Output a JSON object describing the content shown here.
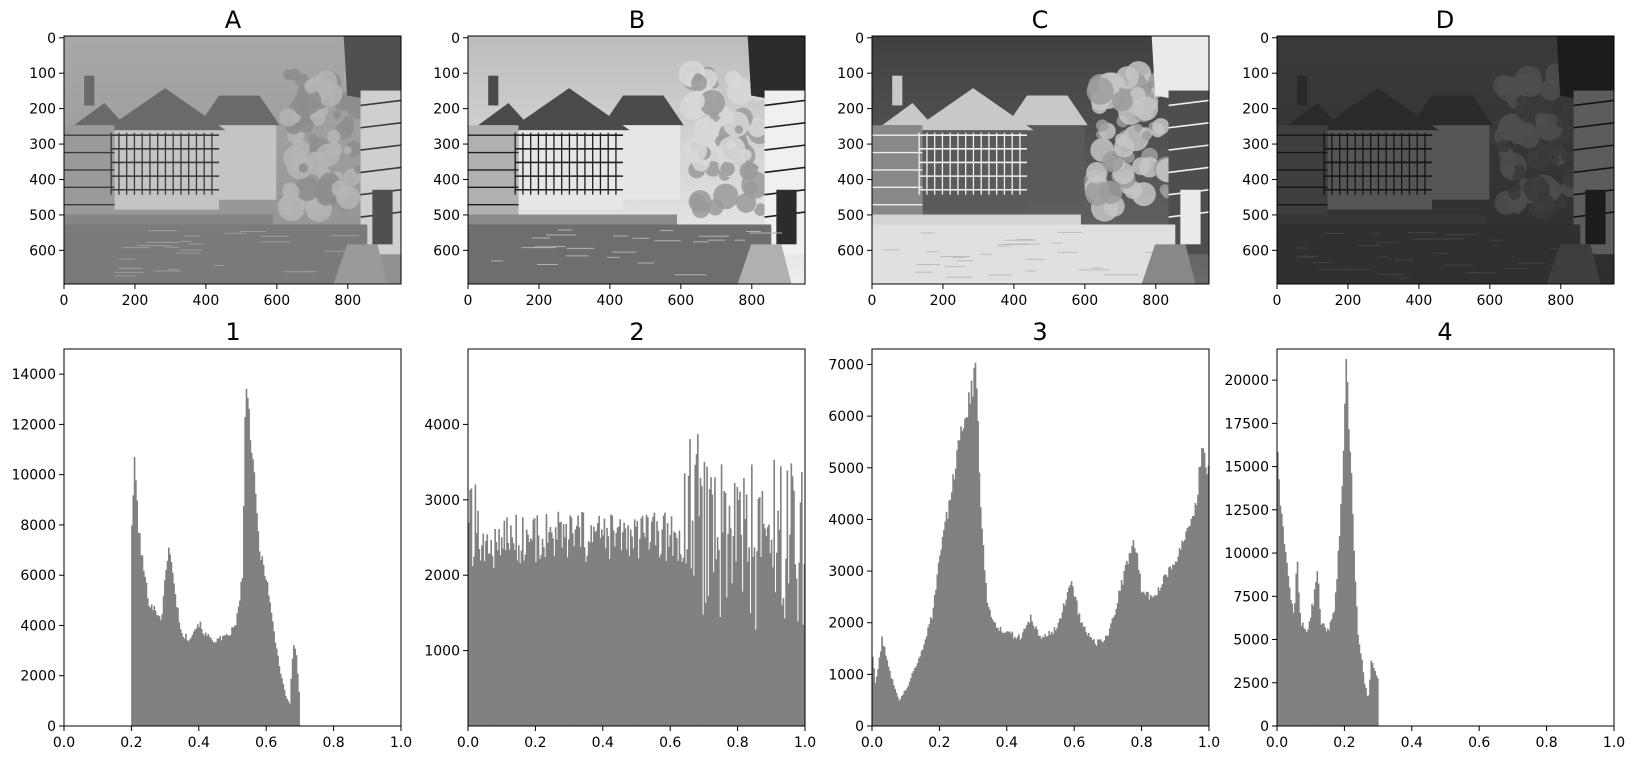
{
  "colors": {
    "bar": "#808080",
    "axis": "#000000",
    "background": "#ffffff"
  },
  "images": [
    {
      "title": "A",
      "variant": "original",
      "x_ticks": [
        "0",
        "200",
        "400",
        "600",
        "800"
      ],
      "y_ticks": [
        "0",
        "100",
        "200",
        "300",
        "400",
        "500",
        "600"
      ]
    },
    {
      "title": "B",
      "variant": "equalized",
      "x_ticks": [
        "0",
        "200",
        "400",
        "600",
        "800"
      ],
      "y_ticks": [
        "0",
        "100",
        "200",
        "300",
        "400",
        "500",
        "600"
      ]
    },
    {
      "title": "C",
      "variant": "inverted",
      "x_ticks": [
        "0",
        "200",
        "400",
        "600",
        "800"
      ],
      "y_ticks": [
        "0",
        "100",
        "200",
        "300",
        "400",
        "500",
        "600"
      ]
    },
    {
      "title": "D",
      "variant": "darkened",
      "x_ticks": [
        "0",
        "200",
        "400",
        "600",
        "800"
      ],
      "y_ticks": [
        "0",
        "100",
        "200",
        "300",
        "400",
        "500",
        "600"
      ]
    }
  ],
  "chart_data": [
    {
      "type": "bar",
      "title": "1",
      "xlim": [
        0,
        1
      ],
      "ylim": [
        0,
        15000
      ],
      "x_ticks": [
        "0.0",
        "0.2",
        "0.4",
        "0.6",
        "0.8",
        "1.0"
      ],
      "y_ticks": [
        "0",
        "2000",
        "4000",
        "6000",
        "8000",
        "10000",
        "12000",
        "14000"
      ],
      "profile": [
        [
          0.0,
          0
        ],
        [
          0.199,
          0
        ],
        [
          0.2,
          7800
        ],
        [
          0.21,
          10600
        ],
        [
          0.22,
          8000
        ],
        [
          0.23,
          6800
        ],
        [
          0.25,
          5000
        ],
        [
          0.27,
          4600
        ],
        [
          0.29,
          4300
        ],
        [
          0.31,
          7300
        ],
        [
          0.33,
          5200
        ],
        [
          0.35,
          3600
        ],
        [
          0.37,
          3500
        ],
        [
          0.4,
          4100
        ],
        [
          0.42,
          3600
        ],
        [
          0.45,
          3400
        ],
        [
          0.48,
          3500
        ],
        [
          0.51,
          4000
        ],
        [
          0.53,
          6000
        ],
        [
          0.54,
          14200
        ],
        [
          0.55,
          12000
        ],
        [
          0.56,
          10500
        ],
        [
          0.58,
          7000
        ],
        [
          0.6,
          6000
        ],
        [
          0.62,
          4000
        ],
        [
          0.64,
          2300
        ],
        [
          0.66,
          1100
        ],
        [
          0.67,
          900
        ],
        [
          0.68,
          3300
        ],
        [
          0.69,
          2800
        ],
        [
          0.7,
          800
        ],
        [
          0.701,
          0
        ],
        [
          1.0,
          0
        ]
      ]
    },
    {
      "type": "bar",
      "title": "2",
      "xlim": [
        0,
        1
      ],
      "ylim": [
        0,
        5000
      ],
      "x_ticks": [
        "0.0",
        "0.2",
        "0.4",
        "0.6",
        "0.8",
        "1.0"
      ],
      "y_ticks": [
        "1000",
        "2000",
        "3000",
        "4000"
      ],
      "profile": [
        [
          0.0,
          2500
        ],
        [
          0.02,
          2800
        ],
        [
          0.05,
          2300
        ],
        [
          0.1,
          2500
        ],
        [
          0.2,
          2500
        ],
        [
          0.3,
          2500
        ],
        [
          0.4,
          2500
        ],
        [
          0.5,
          2500
        ],
        [
          0.6,
          2500
        ],
        [
          0.64,
          2400
        ],
        [
          0.66,
          2800
        ],
        [
          0.7,
          2600
        ],
        [
          0.75,
          2600
        ],
        [
          0.8,
          2500
        ],
        [
          0.85,
          2400
        ],
        [
          0.9,
          2400
        ],
        [
          0.95,
          2500
        ],
        [
          1.0,
          2400
        ]
      ]
    },
    {
      "type": "bar",
      "title": "3",
      "xlim": [
        0,
        1
      ],
      "ylim": [
        0,
        7300
      ],
      "x_ticks": [
        "0.0",
        "0.2",
        "0.4",
        "0.6",
        "0.8",
        "1.0"
      ],
      "y_ticks": [
        "0",
        "1000",
        "2000",
        "3000",
        "4000",
        "5000",
        "6000",
        "7000"
      ],
      "profile": [
        [
          0.0,
          1500
        ],
        [
          0.01,
          800
        ],
        [
          0.03,
          1700
        ],
        [
          0.05,
          1100
        ],
        [
          0.08,
          500
        ],
        [
          0.1,
          700
        ],
        [
          0.14,
          1300
        ],
        [
          0.18,
          2200
        ],
        [
          0.2,
          3300
        ],
        [
          0.23,
          4300
        ],
        [
          0.25,
          5200
        ],
        [
          0.27,
          5800
        ],
        [
          0.29,
          6400
        ],
        [
          0.31,
          6900
        ],
        [
          0.32,
          4500
        ],
        [
          0.34,
          2500
        ],
        [
          0.36,
          2000
        ],
        [
          0.4,
          1800
        ],
        [
          0.44,
          1700
        ],
        [
          0.47,
          2100
        ],
        [
          0.5,
          1700
        ],
        [
          0.55,
          1900
        ],
        [
          0.59,
          2800
        ],
        [
          0.62,
          2000
        ],
        [
          0.66,
          1600
        ],
        [
          0.7,
          1700
        ],
        [
          0.75,
          3000
        ],
        [
          0.78,
          3600
        ],
        [
          0.8,
          2600
        ],
        [
          0.84,
          2500
        ],
        [
          0.88,
          3000
        ],
        [
          0.92,
          3500
        ],
        [
          0.96,
          4200
        ],
        [
          0.98,
          5500
        ],
        [
          1.0,
          4800
        ]
      ]
    },
    {
      "type": "bar",
      "title": "4",
      "xlim": [
        0,
        1
      ],
      "ylim": [
        0,
        21800
      ],
      "x_ticks": [
        "0.0",
        "0.2",
        "0.4",
        "0.6",
        "0.8",
        "1.0"
      ],
      "y_ticks": [
        "0",
        "2500",
        "5000",
        "7500",
        "10000",
        "12500",
        "15000",
        "17500",
        "20000"
      ],
      "profile": [
        [
          0.0,
          17500
        ],
        [
          0.005,
          14000
        ],
        [
          0.01,
          12500
        ],
        [
          0.02,
          11000
        ],
        [
          0.03,
          9000
        ],
        [
          0.04,
          7500
        ],
        [
          0.05,
          6500
        ],
        [
          0.06,
          9500
        ],
        [
          0.07,
          6000
        ],
        [
          0.09,
          5500
        ],
        [
          0.11,
          7500
        ],
        [
          0.12,
          9000
        ],
        [
          0.13,
          6000
        ],
        [
          0.15,
          5500
        ],
        [
          0.17,
          6500
        ],
        [
          0.19,
          12500
        ],
        [
          0.2,
          18000
        ],
        [
          0.205,
          20500
        ],
        [
          0.21,
          19000
        ],
        [
          0.22,
          15000
        ],
        [
          0.23,
          9000
        ],
        [
          0.24,
          5500
        ],
        [
          0.26,
          2500
        ],
        [
          0.27,
          1500
        ],
        [
          0.28,
          3800
        ],
        [
          0.29,
          3200
        ],
        [
          0.3,
          2800
        ],
        [
          0.301,
          0
        ],
        [
          1.0,
          0
        ]
      ]
    }
  ]
}
